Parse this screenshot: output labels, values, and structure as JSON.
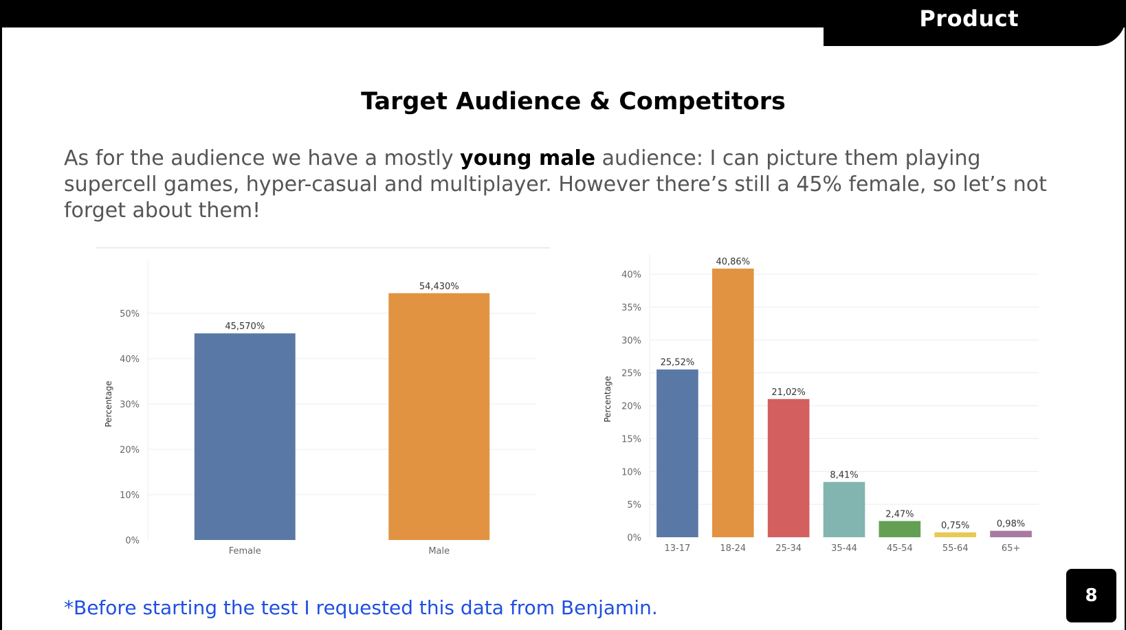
{
  "header": {
    "section": "Product"
  },
  "slide": {
    "title": "Target Audience & Competitors",
    "intro_before": "As for the audience we have a mostly ",
    "intro_bold": "young male",
    "intro_after": " audience: I can picture them playing supercell games, hyper-casual and multiplayer. However there’s still a 45% female, so let’s not forget about them!",
    "footnote": "*Before starting the test I requested this data from Benjamin.",
    "page_number": "8"
  },
  "chart_data": [
    {
      "type": "bar",
      "categories": [
        "Female",
        "Male"
      ],
      "values": [
        45.57,
        54.43
      ],
      "value_labels": [
        "45,570%",
        "54,430%"
      ],
      "ylabel": "Percentage",
      "ylim": [
        0,
        60
      ],
      "yticks": [
        0,
        10,
        20,
        30,
        40,
        50
      ],
      "ytick_labels": [
        "0%",
        "10%",
        "20%",
        "30%",
        "40%",
        "50%"
      ],
      "colors": [
        "#5a78a5",
        "#e29341"
      ],
      "grid": true
    },
    {
      "type": "bar",
      "categories": [
        "13-17",
        "18-24",
        "25-34",
        "35-44",
        "45-54",
        "55-64",
        "65+"
      ],
      "values": [
        25.52,
        40.86,
        21.02,
        8.41,
        2.47,
        0.75,
        0.98
      ],
      "value_labels": [
        "25,52%",
        "40,86%",
        "21,02%",
        "8,41%",
        "2,47%",
        "0,75%",
        "0,98%"
      ],
      "ylabel": "Percentage",
      "ylim": [
        0,
        42
      ],
      "yticks": [
        0,
        5,
        10,
        15,
        20,
        25,
        30,
        35,
        40
      ],
      "ytick_labels": [
        "0%",
        "5%",
        "10%",
        "15%",
        "20%",
        "25%",
        "30%",
        "35%",
        "40%"
      ],
      "colors": [
        "#5a78a5",
        "#e29341",
        "#d45f5f",
        "#83b5b0",
        "#64a054",
        "#e8c955",
        "#a87aa1"
      ],
      "grid": true
    }
  ]
}
